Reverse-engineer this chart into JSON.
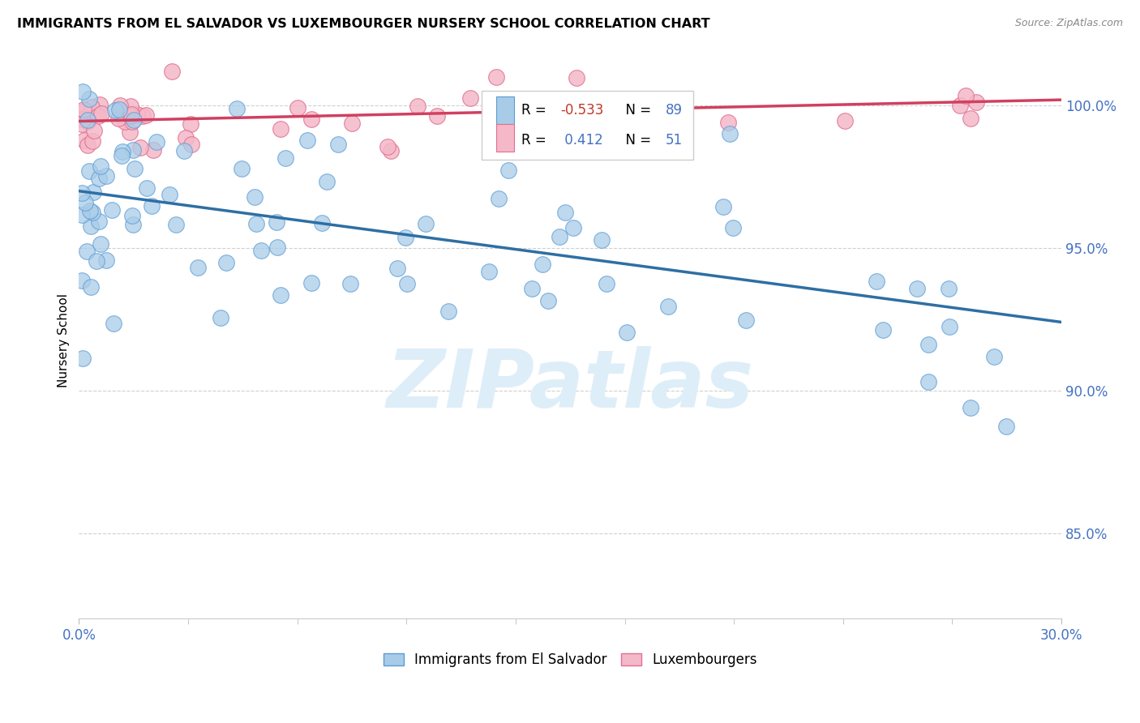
{
  "title": "IMMIGRANTS FROM EL SALVADOR VS LUXEMBOURGER NURSERY SCHOOL CORRELATION CHART",
  "source": "Source: ZipAtlas.com",
  "ylabel": "Nursery School",
  "ytick_labels": [
    "85.0%",
    "90.0%",
    "95.0%",
    "100.0%"
  ],
  "ytick_values": [
    0.85,
    0.9,
    0.95,
    1.0
  ],
  "xlim": [
    0.0,
    0.3
  ],
  "ylim": [
    0.82,
    1.015
  ],
  "legend_label_blue": "Immigrants from El Salvador",
  "legend_label_pink": "Luxembourgers",
  "R_blue": -0.533,
  "N_blue": 89,
  "R_pink": 0.412,
  "N_pink": 51,
  "blue_color": "#a8cce8",
  "pink_color": "#f4b8c8",
  "blue_edge_color": "#5b9bd5",
  "pink_edge_color": "#e07090",
  "blue_line_color": "#2e6fa3",
  "pink_line_color": "#d04060",
  "watermark_color": "#ddeef8",
  "blue_line_x": [
    0.0,
    0.3
  ],
  "blue_line_y": [
    0.97,
    0.924
  ],
  "pink_line_x": [
    0.0,
    0.3
  ],
  "pink_line_y": [
    0.9945,
    1.002
  ],
  "R_blue_color": "#c0392b",
  "N_color": "#4472c4",
  "grid_color": "#d0d0d0",
  "ytick_color": "#4472c4",
  "xtick_color": "#4472c4"
}
